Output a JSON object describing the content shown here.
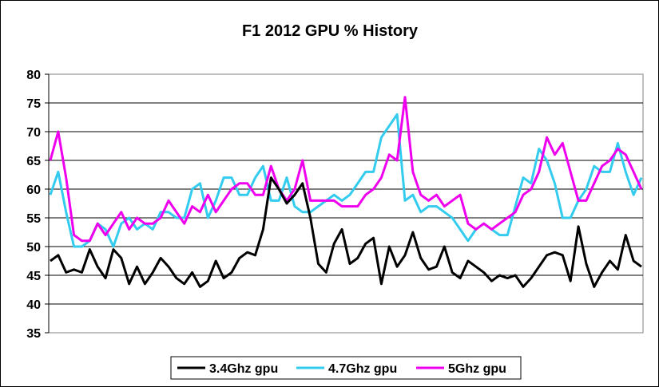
{
  "chart_data": {
    "type": "line",
    "title": "F1 2012 GPU % History",
    "xlabel": "",
    "ylabel": "",
    "ylim": [
      35,
      80
    ],
    "yticks": [
      35,
      40,
      45,
      50,
      55,
      60,
      65,
      70,
      75,
      80
    ],
    "grid": "horizontal",
    "legend": "bottom",
    "point_count": 151,
    "series": [
      {
        "name": "3.4Ghz gpu",
        "color": "#000000",
        "keypoints": [
          [
            0,
            47.5
          ],
          [
            2,
            48.5
          ],
          [
            4,
            45.5
          ],
          [
            6,
            46
          ],
          [
            8,
            45.5
          ],
          [
            10,
            49.5
          ],
          [
            12,
            46.5
          ],
          [
            14,
            44.5
          ],
          [
            16,
            49.5
          ],
          [
            18,
            48
          ],
          [
            20,
            43.5
          ],
          [
            22,
            46.5
          ],
          [
            24,
            43.5
          ],
          [
            26,
            45.5
          ],
          [
            28,
            48
          ],
          [
            30,
            46.5
          ],
          [
            32,
            44.5
          ],
          [
            34,
            43.5
          ],
          [
            36,
            45.5
          ],
          [
            38,
            43
          ],
          [
            40,
            44
          ],
          [
            42,
            47.5
          ],
          [
            44,
            44.5
          ],
          [
            46,
            45.5
          ],
          [
            48,
            48
          ],
          [
            50,
            49
          ],
          [
            52,
            48.5
          ],
          [
            54,
            53
          ],
          [
            56,
            62
          ],
          [
            58,
            60
          ],
          [
            60,
            57.5
          ],
          [
            62,
            59
          ],
          [
            64,
            61
          ],
          [
            66,
            55
          ],
          [
            68,
            47
          ],
          [
            70,
            45.5
          ],
          [
            72,
            50.5
          ],
          [
            74,
            53
          ],
          [
            76,
            47
          ],
          [
            78,
            48
          ],
          [
            80,
            50.5
          ],
          [
            82,
            51.5
          ],
          [
            84,
            43.5
          ],
          [
            86,
            50
          ],
          [
            88,
            46.5
          ],
          [
            90,
            48.5
          ],
          [
            92,
            52.5
          ],
          [
            94,
            48
          ],
          [
            96,
            46
          ],
          [
            98,
            46.5
          ],
          [
            100,
            50
          ],
          [
            102,
            45.5
          ],
          [
            104,
            44.5
          ],
          [
            106,
            47.5
          ],
          [
            108,
            46.5
          ],
          [
            110,
            45.5
          ],
          [
            112,
            44
          ],
          [
            114,
            45
          ],
          [
            116,
            44.5
          ],
          [
            118,
            45
          ],
          [
            120,
            43
          ],
          [
            122,
            44.5
          ],
          [
            124,
            46.5
          ],
          [
            126,
            48.5
          ],
          [
            128,
            49
          ],
          [
            130,
            48.5
          ],
          [
            132,
            44
          ],
          [
            134,
            53.5
          ],
          [
            136,
            47
          ],
          [
            138,
            43
          ],
          [
            140,
            45.5
          ],
          [
            142,
            47.5
          ],
          [
            144,
            46
          ],
          [
            146,
            52
          ],
          [
            148,
            47.5
          ],
          [
            150,
            46.5
          ]
        ]
      },
      {
        "name": "4.7Ghz gpu",
        "color": "#33CCEE",
        "keypoints": [
          [
            0,
            59
          ],
          [
            2,
            63
          ],
          [
            4,
            56
          ],
          [
            6,
            50
          ],
          [
            8,
            50
          ],
          [
            10,
            51
          ],
          [
            12,
            54
          ],
          [
            14,
            53
          ],
          [
            16,
            50
          ],
          [
            18,
            54
          ],
          [
            20,
            55
          ],
          [
            22,
            53
          ],
          [
            24,
            54
          ],
          [
            26,
            53
          ],
          [
            28,
            56
          ],
          [
            30,
            56
          ],
          [
            32,
            55
          ],
          [
            34,
            55
          ],
          [
            36,
            60
          ],
          [
            38,
            61
          ],
          [
            40,
            55
          ],
          [
            42,
            58
          ],
          [
            44,
            62
          ],
          [
            46,
            62
          ],
          [
            48,
            59
          ],
          [
            50,
            59
          ],
          [
            52,
            62
          ],
          [
            54,
            64
          ],
          [
            56,
            58
          ],
          [
            58,
            58
          ],
          [
            60,
            62
          ],
          [
            62,
            57
          ],
          [
            64,
            56
          ],
          [
            66,
            56
          ],
          [
            68,
            57
          ],
          [
            70,
            58
          ],
          [
            72,
            59
          ],
          [
            74,
            58
          ],
          [
            76,
            59
          ],
          [
            78,
            61
          ],
          [
            80,
            63
          ],
          [
            82,
            63
          ],
          [
            84,
            69
          ],
          [
            86,
            71
          ],
          [
            88,
            73
          ],
          [
            90,
            58
          ],
          [
            92,
            59
          ],
          [
            94,
            56
          ],
          [
            96,
            57
          ],
          [
            98,
            57
          ],
          [
            100,
            56
          ],
          [
            102,
            55
          ],
          [
            104,
            53
          ],
          [
            106,
            51
          ],
          [
            108,
            53
          ],
          [
            110,
            54
          ],
          [
            112,
            53
          ],
          [
            114,
            52
          ],
          [
            116,
            52
          ],
          [
            118,
            57
          ],
          [
            120,
            62
          ],
          [
            122,
            61
          ],
          [
            124,
            67
          ],
          [
            126,
            65
          ],
          [
            128,
            61
          ],
          [
            130,
            55
          ],
          [
            132,
            55
          ],
          [
            134,
            58
          ],
          [
            136,
            60
          ],
          [
            138,
            64
          ],
          [
            140,
            63
          ],
          [
            142,
            63
          ],
          [
            144,
            68
          ],
          [
            146,
            63
          ],
          [
            148,
            59
          ],
          [
            150,
            62
          ]
        ]
      },
      {
        "name": "5Ghz gpu",
        "color": "#EE00EE",
        "keypoints": [
          [
            0,
            65
          ],
          [
            2,
            70
          ],
          [
            4,
            62
          ],
          [
            6,
            52
          ],
          [
            8,
            51
          ],
          [
            10,
            51
          ],
          [
            12,
            54
          ],
          [
            14,
            52
          ],
          [
            16,
            54
          ],
          [
            18,
            56
          ],
          [
            20,
            53
          ],
          [
            22,
            55
          ],
          [
            24,
            54
          ],
          [
            26,
            54
          ],
          [
            28,
            55
          ],
          [
            30,
            58
          ],
          [
            32,
            56
          ],
          [
            34,
            54
          ],
          [
            36,
            57
          ],
          [
            38,
            56
          ],
          [
            40,
            59
          ],
          [
            42,
            56
          ],
          [
            44,
            58
          ],
          [
            46,
            60
          ],
          [
            48,
            61
          ],
          [
            50,
            61
          ],
          [
            52,
            59
          ],
          [
            54,
            59
          ],
          [
            56,
            64
          ],
          [
            58,
            60
          ],
          [
            60,
            58
          ],
          [
            62,
            60
          ],
          [
            64,
            65
          ],
          [
            66,
            58
          ],
          [
            68,
            58
          ],
          [
            70,
            58
          ],
          [
            72,
            58
          ],
          [
            74,
            57
          ],
          [
            76,
            57
          ],
          [
            78,
            57
          ],
          [
            80,
            59
          ],
          [
            82,
            60
          ],
          [
            84,
            62
          ],
          [
            86,
            66
          ],
          [
            88,
            65
          ],
          [
            90,
            76
          ],
          [
            92,
            63
          ],
          [
            94,
            59
          ],
          [
            96,
            58
          ],
          [
            98,
            59
          ],
          [
            100,
            57
          ],
          [
            102,
            58
          ],
          [
            104,
            59
          ],
          [
            106,
            54
          ],
          [
            108,
            53
          ],
          [
            110,
            54
          ],
          [
            112,
            53
          ],
          [
            114,
            54
          ],
          [
            116,
            55
          ],
          [
            118,
            56
          ],
          [
            120,
            59
          ],
          [
            122,
            60
          ],
          [
            124,
            63
          ],
          [
            126,
            69
          ],
          [
            128,
            66
          ],
          [
            130,
            68
          ],
          [
            132,
            63
          ],
          [
            134,
            58
          ],
          [
            136,
            58
          ],
          [
            138,
            61
          ],
          [
            140,
            64
          ],
          [
            142,
            65
          ],
          [
            144,
            67
          ],
          [
            146,
            66
          ],
          [
            148,
            63
          ],
          [
            150,
            60
          ]
        ]
      }
    ]
  }
}
